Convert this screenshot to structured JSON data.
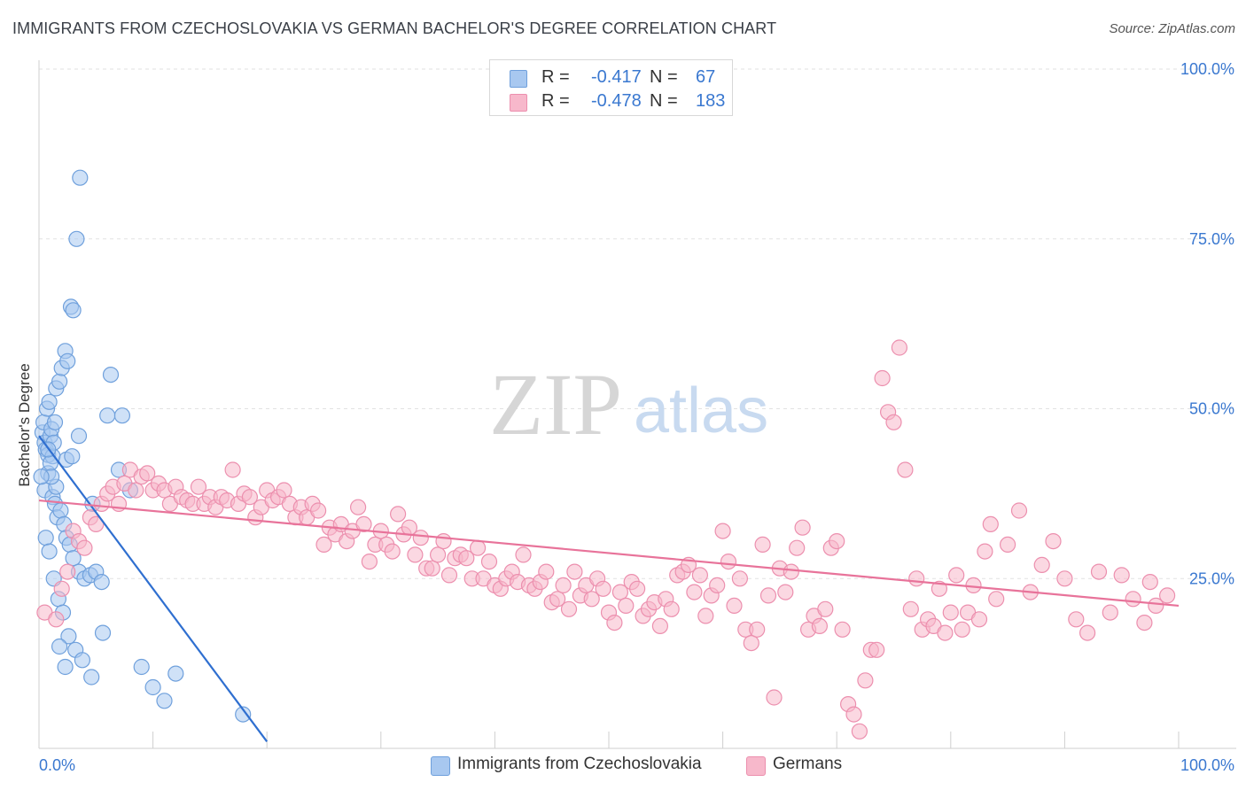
{
  "header": {
    "title": "IMMIGRANTS FROM CZECHOSLOVAKIA VS GERMAN BACHELOR'S DEGREE CORRELATION CHART",
    "source": "Source: ZipAtlas.com"
  },
  "watermark": {
    "zip": "ZIP",
    "atlas": "atlas"
  },
  "legend": {
    "rows": [
      {
        "r_label": "R =",
        "r_value": "-0.417",
        "n_label": "N =",
        "n_value": "67",
        "color": "#a8c8f0"
      },
      {
        "r_label": "R =",
        "r_value": "-0.478",
        "n_label": "N =",
        "n_value": "183",
        "color": "#f7b8cb"
      }
    ]
  },
  "bottom_legend": [
    {
      "label": "Immigrants from Czechoslovakia",
      "color": "#a8c8f0"
    },
    {
      "label": "Germans",
      "color": "#f7b8cb"
    }
  ],
  "chart_data": {
    "type": "scatter",
    "ylabel": "Bachelor's Degree",
    "xlim": [
      0,
      100
    ],
    "ylim": [
      0,
      100
    ],
    "x_tick_labels": [
      "0.0%",
      "100.0%"
    ],
    "y_tick_labels": [
      "25.0%",
      "50.0%",
      "75.0%",
      "100.0%"
    ],
    "y_ticks": [
      25,
      50,
      75,
      100
    ],
    "x_minor_ticks": [
      0,
      10,
      20,
      30,
      40,
      50,
      60,
      70,
      80,
      90,
      100
    ],
    "grid": true,
    "series": [
      {
        "name": "Immigrants from Czechoslovakia",
        "color": "#a8c8f0",
        "stroke": "#6fa0dc",
        "trend_color": "#2f6fd0",
        "trend": {
          "x0": 0,
          "y0": 46.0,
          "x1": 20.0,
          "y1": 1.0
        },
        "x": [
          0.3,
          0.5,
          0.6,
          0.8,
          1.0,
          1.2,
          0.4,
          0.7,
          0.9,
          1.1,
          1.3,
          1.5,
          1.8,
          2.0,
          2.3,
          2.5,
          2.8,
          3.0,
          3.3,
          3.6,
          0.5,
          0.8,
          1.0,
          1.2,
          1.4,
          1.6,
          1.9,
          2.2,
          2.4,
          2.7,
          3.0,
          3.5,
          4.0,
          4.5,
          5.0,
          5.5,
          6.0,
          7.0,
          8.0,
          9.0,
          10.0,
          11.0,
          12.0,
          0.6,
          0.9,
          1.3,
          1.7,
          2.1,
          2.6,
          3.2,
          3.8,
          4.6,
          5.6,
          6.3,
          7.3,
          2.4,
          4.7,
          2.3,
          1.8,
          1.5,
          1.1,
          0.8,
          2.9,
          1.4,
          3.5,
          17.9,
          0.2
        ],
        "y": [
          46.5,
          45.0,
          44.0,
          43.2,
          46.0,
          43.0,
          48.0,
          50.0,
          51.0,
          47.0,
          45.0,
          53.0,
          54.0,
          56.0,
          58.5,
          57.0,
          65.0,
          64.5,
          75.0,
          84.0,
          38.0,
          40.5,
          42.0,
          37.0,
          36.0,
          34.0,
          35.0,
          33.0,
          31.0,
          30.0,
          28.0,
          26.0,
          25.0,
          25.5,
          26.0,
          24.5,
          49.0,
          41.0,
          38.0,
          12.0,
          9.0,
          7.0,
          11.0,
          31.0,
          29.0,
          25.0,
          22.0,
          20.0,
          16.5,
          14.5,
          13.0,
          10.5,
          17.0,
          55.0,
          49.0,
          42.5,
          36.0,
          12.0,
          15.0,
          38.5,
          40.0,
          44.0,
          43.0,
          48.0,
          46.0,
          5.0,
          40.0
        ]
      },
      {
        "name": "Germans",
        "color": "#f7b8cb",
        "stroke": "#ec8fae",
        "trend_color": "#e8739a",
        "trend": {
          "x0": 0,
          "y0": 36.5,
          "x1": 100,
          "y1": 21.0
        },
        "x": [
          0.5,
          1.5,
          2.0,
          2.5,
          3.0,
          3.5,
          4.0,
          4.5,
          5.0,
          5.5,
          6.0,
          6.5,
          7.0,
          7.5,
          8.0,
          8.5,
          9.0,
          9.5,
          10.0,
          10.5,
          11.0,
          11.5,
          12.0,
          12.5,
          13.0,
          13.5,
          14.0,
          14.5,
          15.0,
          15.5,
          16.0,
          16.5,
          17.0,
          17.5,
          18.0,
          18.5,
          19.0,
          19.5,
          20.0,
          20.5,
          21.0,
          21.5,
          22.0,
          22.5,
          23.0,
          23.5,
          24.0,
          24.5,
          25.0,
          25.5,
          26.0,
          26.5,
          27.0,
          27.5,
          28.0,
          28.5,
          29.0,
          29.5,
          30.0,
          30.5,
          31.0,
          31.5,
          32.0,
          32.5,
          33.0,
          33.5,
          34.0,
          34.5,
          35.0,
          35.5,
          36.0,
          36.5,
          37.0,
          37.5,
          38.0,
          38.5,
          39.0,
          39.5,
          40.0,
          40.5,
          41.0,
          41.5,
          42.0,
          42.5,
          43.0,
          43.5,
          44.0,
          44.5,
          45.0,
          45.5,
          46.0,
          46.5,
          47.0,
          47.5,
          48.0,
          48.5,
          49.0,
          49.5,
          50.0,
          50.5,
          51.0,
          51.5,
          52.0,
          52.5,
          53.0,
          53.5,
          54.0,
          54.5,
          55.0,
          55.5,
          56.0,
          56.5,
          57.0,
          57.5,
          58.0,
          58.5,
          59.0,
          59.5,
          60.0,
          60.5,
          61.0,
          61.5,
          62.0,
          62.5,
          63.0,
          63.5,
          64.0,
          64.5,
          65.0,
          65.5,
          66.0,
          66.5,
          67.0,
          67.5,
          68.0,
          68.5,
          69.0,
          69.5,
          70.0,
          70.5,
          71.0,
          71.5,
          72.0,
          72.5,
          73.0,
          73.5,
          74.0,
          74.5,
          75.0,
          75.5,
          76.0,
          76.5,
          77.0,
          77.5,
          78.0,
          78.5,
          79.0,
          79.5,
          80.0,
          80.5,
          81.0,
          81.5,
          82.0,
          82.5,
          83.0,
          83.5,
          84.0,
          85.0,
          86.0,
          87.0,
          88.0,
          89.0,
          90.0,
          91.0,
          92.0,
          93.0,
          94.0,
          95.0,
          96.0,
          97.0,
          97.5,
          98.0,
          99.0
        ],
        "y": [
          20.0,
          19.0,
          23.5,
          26.0,
          32.0,
          30.5,
          29.5,
          34.0,
          33.0,
          36.0,
          37.5,
          38.5,
          36.0,
          39.0,
          41.0,
          38.0,
          40.0,
          40.5,
          38.0,
          39.0,
          38.0,
          36.0,
          38.5,
          37.0,
          36.5,
          36.0,
          38.5,
          36.0,
          37.0,
          35.5,
          37.0,
          36.5,
          41.0,
          36.0,
          37.5,
          37.0,
          34.0,
          35.5,
          38.0,
          36.5,
          37.0,
          38.0,
          36.0,
          34.0,
          35.5,
          34.0,
          36.0,
          35.0,
          30.0,
          32.5,
          31.5,
          33.0,
          30.5,
          32.0,
          35.5,
          33.0,
          27.5,
          30.0,
          32.0,
          30.0,
          29.0,
          34.5,
          31.5,
          32.5,
          28.5,
          31.0,
          26.5,
          26.5,
          28.5,
          30.5,
          25.5,
          28.0,
          28.5,
          28.0,
          25.0,
          29.5,
          25.0,
          27.5,
          24.0,
          23.5,
          25.0,
          26.0,
          24.5,
          28.5,
          24.0,
          23.5,
          24.5,
          26.0,
          21.5,
          22.0,
          24.0,
          20.5,
          26.0,
          22.5,
          24.0,
          22.0,
          25.0,
          23.5,
          20.0,
          18.5,
          23.0,
          21.0,
          24.5,
          23.5,
          19.5,
          20.5,
          21.5,
          18.0,
          22.0,
          20.5,
          25.5,
          26.0,
          27.0,
          23.0,
          25.5,
          19.5,
          22.5,
          24.0,
          32.0,
          27.5,
          21.0,
          25.0,
          17.5,
          15.5,
          17.5,
          30.0,
          22.5,
          7.5,
          26.5,
          23.0,
          26.0,
          29.5,
          32.5,
          17.5,
          19.5,
          18.0,
          20.5,
          29.5,
          30.5,
          17.5,
          6.5,
          5.0,
          2.5,
          10.0,
          14.5,
          14.5,
          54.5,
          49.5,
          48.0,
          59.0,
          41.0,
          20.5,
          25.0,
          17.5,
          19.0,
          18.0,
          23.5,
          17.0,
          20.0,
          25.5,
          17.5,
          20.0,
          24.0,
          19.0,
          29.0,
          33.0,
          22.0,
          30.0,
          35.0,
          23.0,
          27.0,
          30.5,
          25.0,
          19.0,
          17.0,
          26.0,
          20.0,
          25.5,
          22.0,
          18.5,
          24.5,
          21.0,
          22.5
        ]
      }
    ]
  }
}
